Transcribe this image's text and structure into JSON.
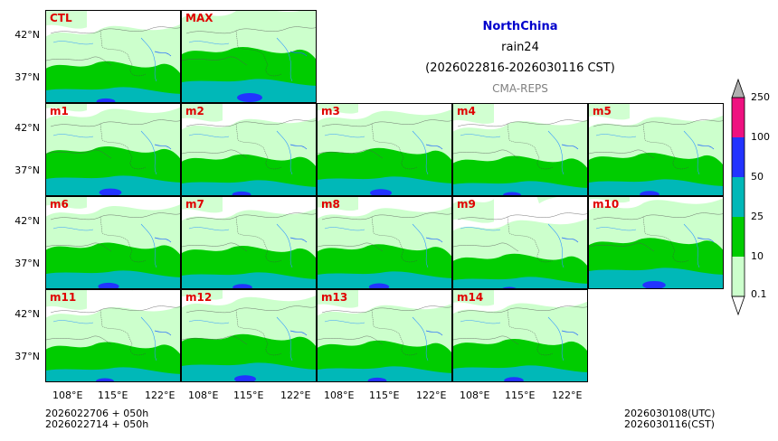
{
  "header": {
    "region": "NorthChina",
    "variable": "rain24",
    "period": "(2026022816-2026030116 CST)",
    "model": "CMA-REPS"
  },
  "colors": {
    "label": "#e00000",
    "region_title": "#0000cc",
    "levels": [
      "#ccffcc",
      "#00cc00",
      "#00b8b8",
      "#2233ff",
      "#ee1180",
      "#b0b0b0"
    ]
  },
  "panels": [
    {
      "label": "CTL",
      "intensity": 0.55
    },
    {
      "label": "MAX",
      "intensity": 1.0
    },
    {
      "label": "m1",
      "intensity": 0.8
    },
    {
      "label": "m2",
      "intensity": 0.55
    },
    {
      "label": "m3",
      "intensity": 0.75
    },
    {
      "label": "m4",
      "intensity": 0.5
    },
    {
      "label": "m5",
      "intensity": 0.6
    },
    {
      "label": "m6",
      "intensity": 0.7
    },
    {
      "label": "m7",
      "intensity": 0.6
    },
    {
      "label": "m8",
      "intensity": 0.65
    },
    {
      "label": "m9",
      "intensity": 0.35
    },
    {
      "label": "m10",
      "intensity": 0.85
    },
    {
      "label": "m11",
      "intensity": 0.5
    },
    {
      "label": "m12",
      "intensity": 0.75
    },
    {
      "label": "m13",
      "intensity": 0.55
    },
    {
      "label": "m14",
      "intensity": 0.6
    }
  ],
  "axes": {
    "lat_ticks": [
      "42°N",
      "37°N"
    ],
    "lon_ticks": [
      "108°E",
      "115°E",
      "122°E"
    ]
  },
  "colorbar": {
    "ticks": [
      "250",
      "100",
      "50",
      "25",
      "10",
      "0.1"
    ]
  },
  "footer": {
    "init_line1": "2026022706  +  050h",
    "init_line2": "2026022714  +  050h",
    "valid_utc": "2026030108(UTC)",
    "valid_cst": "2026030116(CST)"
  }
}
